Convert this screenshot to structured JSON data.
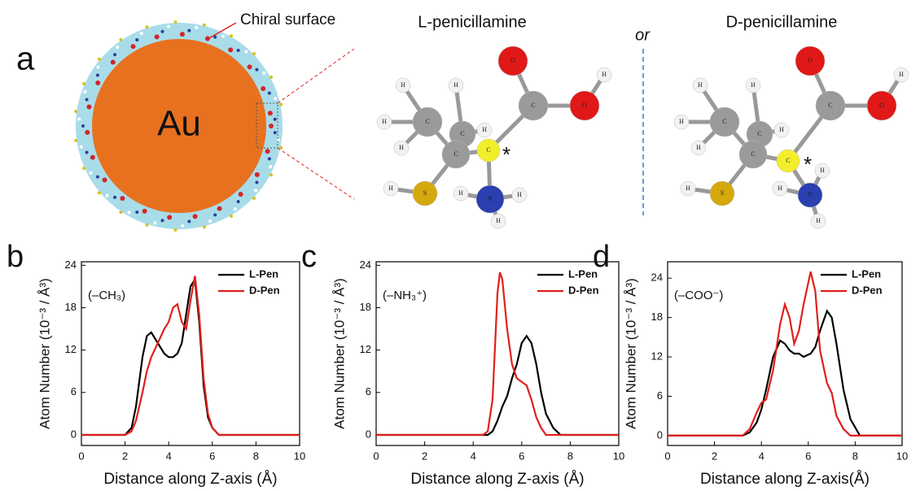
{
  "panel_a": {
    "label": "a",
    "chiral_surface": "Chiral surface",
    "core": "Au",
    "left_title": "L-penicillamine",
    "separator": "or",
    "right_title": "D-penicillamine",
    "left_molecule": {
      "atoms": [
        "H",
        "C",
        "H",
        "H",
        "H",
        "C",
        "H",
        "C",
        "C",
        "O",
        "C",
        "O",
        "H",
        "S",
        "H",
        "N",
        "H",
        "H",
        "H"
      ],
      "chiral_marker": "*"
    },
    "right_molecule": {
      "atoms": [
        "H",
        "C",
        "H",
        "H",
        "H",
        "C",
        "H",
        "C",
        "C",
        "O",
        "C",
        "O",
        "H",
        "S",
        "H",
        "N",
        "H",
        "H",
        "H"
      ],
      "chiral_marker": "*"
    }
  },
  "chart_data": [
    {
      "type": "line",
      "panel_label": "b",
      "annotation": "(–CH₃)",
      "xlabel": "Distance along Z-axis (Å)",
      "ylabel": "Atom Number (10⁻³ / Å³)",
      "x": [
        0,
        2,
        2.3,
        2.5,
        2.8,
        3,
        3.2,
        3.5,
        3.8,
        4,
        4.2,
        4.4,
        4.6,
        4.8,
        5,
        5.2,
        5.4,
        5.6,
        5.8,
        6,
        6.3,
        10
      ],
      "series": [
        {
          "name": "L-Pen",
          "color": "#000000",
          "values": [
            0,
            0,
            1,
            4,
            11,
            14,
            14.5,
            13,
            11.5,
            11,
            11,
            11.5,
            13,
            17,
            21,
            22,
            16,
            7,
            2.5,
            1,
            0,
            0
          ]
        },
        {
          "name": "D-Pen",
          "color": "#e0201b",
          "values": [
            0,
            0,
            0.5,
            2,
            6,
            9,
            11,
            13,
            15,
            16,
            18,
            18.5,
            16,
            15,
            19,
            22.5,
            17,
            8,
            3,
            1,
            0,
            0
          ]
        }
      ],
      "xlim": [
        0,
        10
      ],
      "xticks": [
        0,
        2,
        4,
        6,
        8,
        10
      ],
      "ylim": [
        -1.5,
        24.5
      ],
      "yticks": [
        0,
        6,
        12,
        18,
        24
      ]
    },
    {
      "type": "line",
      "panel_label": "c",
      "annotation": "(–NH₃⁺)",
      "xlabel": "Distance along Z-axis (Å)",
      "ylabel": "Atom Number (10⁻³ / Å³)",
      "x": [
        0,
        4.4,
        4.6,
        4.8,
        5,
        5.1,
        5.2,
        5.4,
        5.6,
        5.8,
        6,
        6.2,
        6.4,
        6.6,
        6.8,
        7,
        7.3,
        7.6,
        10
      ],
      "series": [
        {
          "name": "L-Pen",
          "color": "#000000",
          "values": [
            0,
            0,
            0,
            0.5,
            2,
            3,
            4,
            5.5,
            8,
            10,
            13,
            14,
            13,
            10,
            6,
            3,
            1,
            0,
            0
          ]
        },
        {
          "name": "D-Pen",
          "color": "#e0201b",
          "values": [
            0,
            0,
            0.5,
            5,
            20,
            23,
            22,
            15,
            10,
            8,
            7.5,
            7,
            5,
            2.5,
            1,
            0,
            0,
            0,
            0
          ]
        }
      ],
      "xlim": [
        0,
        10
      ],
      "xticks": [
        0,
        2,
        4,
        6,
        8,
        10
      ],
      "ylim": [
        -1.5,
        24.5
      ],
      "yticks": [
        0,
        6,
        12,
        18,
        24
      ]
    },
    {
      "type": "line",
      "panel_label": "d",
      "annotation": "(–COO⁻)",
      "xlabel": "Distance along Z-axis(Å)",
      "ylabel": "Atom Number (10⁻³ / Å³)",
      "x": [
        0,
        3.2,
        3.5,
        3.8,
        4,
        4.2,
        4.5,
        4.8,
        5,
        5.2,
        5.4,
        5.6,
        5.8,
        6.1,
        6.3,
        6.5,
        6.8,
        7,
        7.2,
        7.5,
        7.8,
        8.2,
        10
      ],
      "series": [
        {
          "name": "L-Pen",
          "color": "#000000",
          "values": [
            0,
            0,
            0.5,
            2,
            4,
            7,
            12,
            14.5,
            14,
            13,
            12.5,
            12.5,
            12,
            12.5,
            13.5,
            16,
            19,
            18,
            14,
            7,
            2.5,
            0,
            0
          ]
        },
        {
          "name": "D-Pen",
          "color": "#e0201b",
          "values": [
            0,
            0,
            1,
            3.5,
            5,
            5.5,
            10,
            17,
            20,
            18,
            14,
            16,
            20,
            25,
            22,
            13,
            8,
            6.5,
            3,
            1,
            0,
            0,
            0
          ]
        }
      ],
      "xlim": [
        0,
        10
      ],
      "xticks": [
        0,
        2,
        4,
        6,
        8,
        10
      ],
      "ylim": [
        -1.5,
        26.5
      ],
      "yticks": [
        0,
        6,
        12,
        18,
        24
      ]
    }
  ]
}
